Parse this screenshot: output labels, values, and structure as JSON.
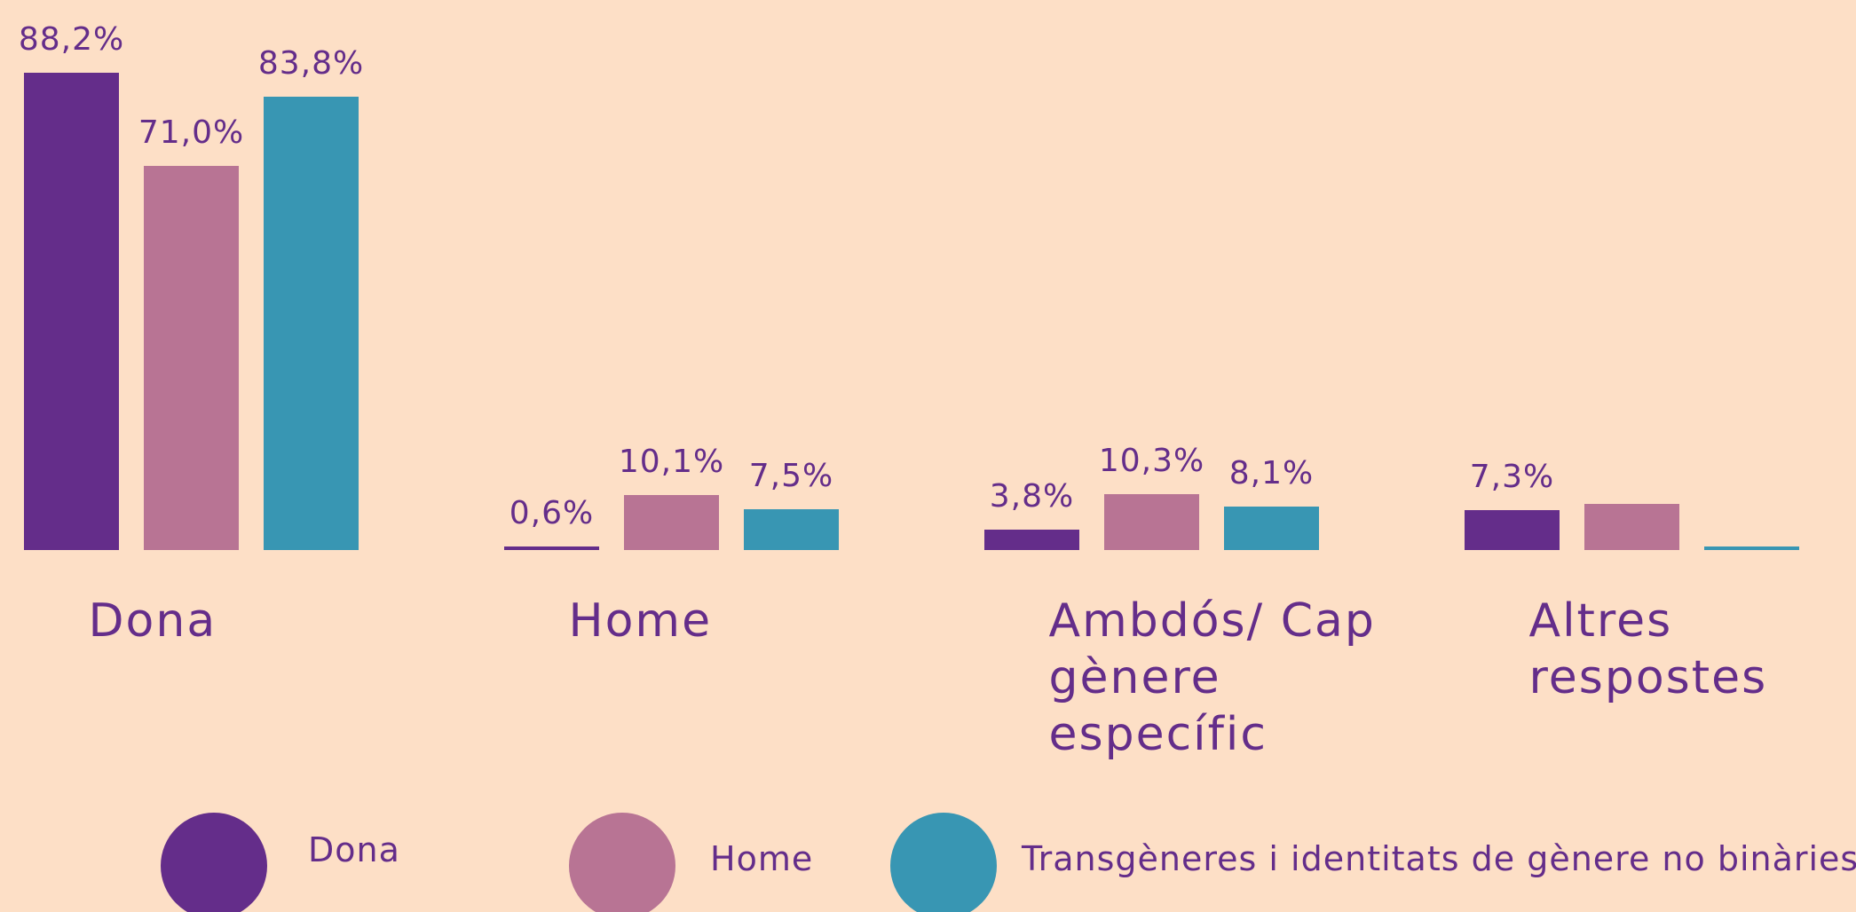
{
  "chart_data": {
    "type": "bar",
    "categories": [
      "Dona",
      "Home",
      "Ambdós/ Cap gènere específic",
      "Altres respostes"
    ],
    "series": [
      {
        "name": "Dona",
        "color": "#642d8a",
        "values": [
          88.2,
          0.6,
          3.8,
          7.3
        ],
        "value_labels": [
          "88,2%",
          "0,6%",
          "3,8%",
          "7,3%"
        ]
      },
      {
        "name": "Home",
        "color": "#b87494",
        "values": [
          71.0,
          10.1,
          10.3,
          8.6
        ],
        "value_labels": [
          "71,0%",
          "10,1%",
          "10,3%",
          null
        ]
      },
      {
        "name": "Transgèneres i identitats de gènere no binàries",
        "color": "#3896b3",
        "values": [
          83.8,
          7.5,
          8.1,
          0.6
        ],
        "value_labels": [
          "83,8%",
          "7,5%",
          "8,1%",
          null
        ]
      }
    ],
    "ylim": [
      0,
      100
    ]
  }
}
